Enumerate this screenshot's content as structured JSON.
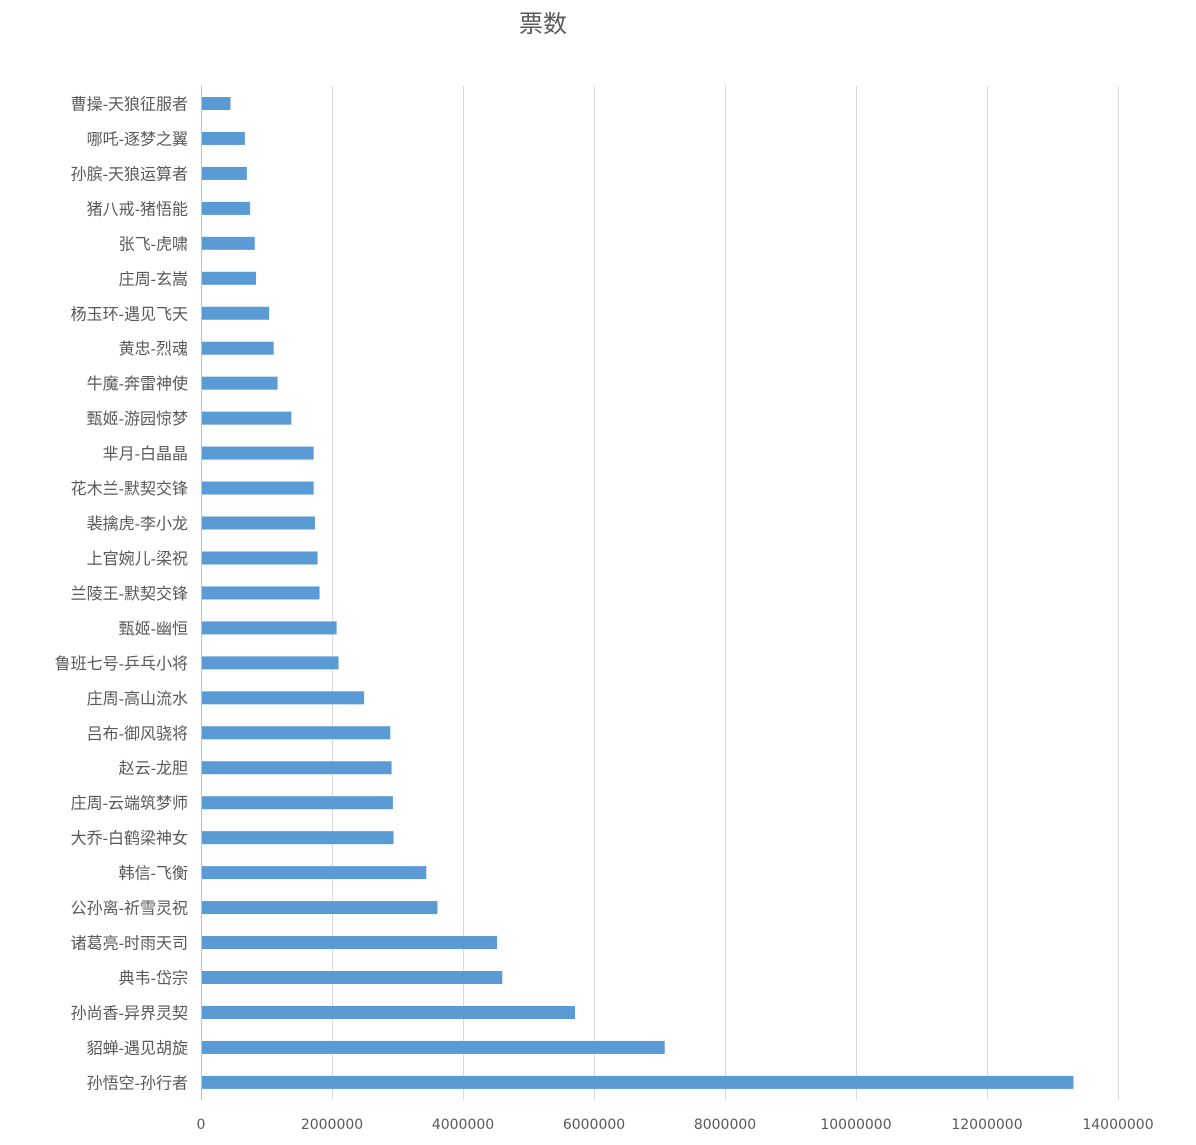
{
  "chart_data": {
    "type": "bar",
    "orientation": "horizontal",
    "title": "票数",
    "xlabel": "",
    "ylabel": "",
    "grid": true,
    "legend": "none",
    "bar_color": "#5b9bd5",
    "xlim": [
      0,
      14000000
    ],
    "xticks": [
      0,
      2000000,
      4000000,
      6000000,
      8000000,
      10000000,
      12000000,
      14000000
    ],
    "xtick_labels": [
      "0",
      "2000000",
      "4000000",
      "6000000",
      "8000000",
      "10000000",
      "12000000",
      "14000000"
    ],
    "categories": [
      "曹操-天狼征服者",
      "哪吒-逐梦之翼",
      "孙膑-天狼运算者",
      "猪八戒-猪悟能",
      "张飞-虎啸",
      "庄周-玄嵩",
      "杨玉环-遇见飞天",
      "黄忠-烈魂",
      "牛魔-奔雷神使",
      "甄姬-游园惊梦",
      "芈月-白晶晶",
      "花木兰-默契交锋",
      "裴擒虎-李小龙",
      "上官婉儿-梁祝",
      "兰陵王-默契交锋",
      "甄姬-幽恒",
      "鲁班七号-乒乓小将",
      "庄周-高山流水",
      "吕布-御风骁将",
      "赵云-龙胆",
      "庄周-云端筑梦师",
      "大乔-白鹤梁神女",
      "韩信-飞衡",
      "公孙离-祈雪灵祝",
      "诸葛亮-时雨天司",
      "典韦-岱宗",
      "孙尚香-异界灵契",
      "貂蝉-遇见胡旋",
      "孙悟空-孙行者"
    ],
    "values": [
      450000,
      670000,
      700000,
      750000,
      820000,
      840000,
      1040000,
      1110000,
      1170000,
      1380000,
      1720000,
      1720000,
      1740000,
      1780000,
      1810000,
      2070000,
      2100000,
      2490000,
      2890000,
      2910000,
      2930000,
      2940000,
      3440000,
      3610000,
      4520000,
      4600000,
      5710000,
      7080000,
      13320000
    ]
  }
}
